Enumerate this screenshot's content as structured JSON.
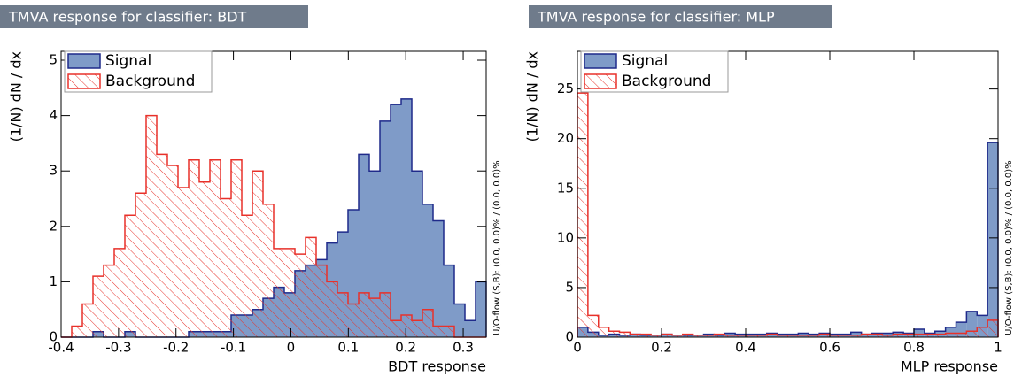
{
  "chart_data": [
    {
      "type": "histogram",
      "title": "TMVA response for classifier: BDT",
      "xlabel": "BDT response",
      "ylabel": "(1/N) dN / dx",
      "annotation": "U/O-flow (S,B): (0.0, 0.0)% / (0.0, 0.0)%",
      "legend": "top-left",
      "bins": [
        -0.4,
        -0.3815,
        -0.363,
        -0.3445,
        -0.326,
        -0.3075,
        -0.289,
        -0.2705,
        -0.252,
        -0.2335,
        -0.215,
        -0.1965,
        -0.178,
        -0.1595,
        -0.141,
        -0.1225,
        -0.104,
        -0.0855,
        -0.067,
        -0.0485,
        -0.03,
        -0.0115,
        0.007,
        0.0255,
        0.044,
        0.0625,
        0.081,
        0.0995,
        0.118,
        0.1365,
        0.155,
        0.1735,
        0.192,
        0.2105,
        0.229,
        0.2475,
        0.266,
        0.2845,
        0.303,
        0.3215,
        0.34
      ],
      "series": [
        {
          "name": "Signal",
          "color": "#7f9bc8",
          "values": [
            0,
            0,
            0,
            0.1,
            0,
            0,
            0.1,
            0,
            0,
            0,
            0,
            0,
            0.1,
            0.1,
            0.1,
            0.1,
            0.4,
            0.4,
            0.5,
            0.7,
            0.9,
            0.8,
            1.2,
            1.3,
            1.4,
            1.7,
            1.9,
            2.3,
            3.3,
            3.0,
            3.9,
            4.2,
            4.3,
            3.0,
            2.4,
            2.1,
            1.3,
            0.6,
            0.3,
            1.0
          ]
        },
        {
          "name": "Background",
          "color": "#e8312a",
          "values": [
            0,
            0.2,
            0.6,
            1.1,
            1.3,
            1.6,
            2.2,
            2.6,
            4.0,
            3.3,
            3.1,
            2.7,
            3.2,
            2.8,
            3.2,
            2.5,
            3.2,
            2.2,
            3.0,
            2.4,
            1.6,
            1.6,
            1.5,
            1.8,
            1.3,
            1.0,
            0.8,
            0.6,
            0.8,
            0.7,
            0.8,
            0.3,
            0.4,
            0.3,
            0.5,
            0.2,
            0.2,
            0,
            0,
            0
          ]
        }
      ],
      "xlim": [
        -0.4,
        0.34
      ],
      "ylim": [
        0,
        5.16
      ],
      "xticks": [
        -0.4,
        -0.3,
        -0.2,
        -0.1,
        0,
        0.1,
        0.2,
        0.3
      ],
      "yticks": [
        0,
        1,
        2,
        3,
        4,
        5
      ]
    },
    {
      "type": "histogram",
      "title": "TMVA response for classifier: MLP",
      "xlabel": "MLP response",
      "ylabel": "(1/N) dN / dx",
      "annotation": "U/O-flow (S,B): (0.0, 0.0)% / (0.0, 0.0)%",
      "legend": "top-left",
      "bins": [
        0,
        0.025,
        0.05,
        0.075,
        0.1,
        0.125,
        0.15,
        0.175,
        0.2,
        0.225,
        0.25,
        0.275,
        0.3,
        0.325,
        0.35,
        0.375,
        0.4,
        0.425,
        0.45,
        0.475,
        0.5,
        0.525,
        0.55,
        0.575,
        0.6,
        0.625,
        0.65,
        0.675,
        0.7,
        0.725,
        0.75,
        0.775,
        0.8,
        0.825,
        0.85,
        0.875,
        0.9,
        0.925,
        0.95,
        0.975,
        1
      ],
      "series": [
        {
          "name": "Signal",
          "color": "#7f9bc8",
          "values": [
            1.0,
            0.5,
            0.2,
            0.3,
            0.2,
            0.3,
            0.2,
            0.2,
            0.3,
            0.2,
            0.2,
            0.2,
            0.3,
            0.2,
            0.4,
            0.3,
            0.3,
            0.3,
            0.4,
            0.3,
            0.3,
            0.4,
            0.3,
            0.4,
            0.3,
            0.3,
            0.5,
            0.3,
            0.4,
            0.4,
            0.5,
            0.4,
            0.8,
            0.4,
            0.6,
            1.0,
            1.5,
            2.6,
            2.2,
            19.6
          ]
        },
        {
          "name": "Background",
          "color": "#e8312a",
          "values": [
            24.6,
            2.2,
            1.0,
            0.6,
            0.5,
            0.3,
            0.3,
            0.2,
            0.3,
            0.2,
            0.3,
            0.2,
            0.2,
            0.3,
            0.2,
            0.2,
            0.2,
            0.2,
            0.3,
            0.2,
            0.2,
            0.2,
            0.2,
            0.3,
            0.2,
            0.2,
            0.2,
            0.3,
            0.3,
            0.2,
            0.3,
            0.3,
            0.3,
            0.3,
            0.3,
            0.4,
            0.4,
            0.6,
            1.0,
            1.7
          ]
        }
      ],
      "xlim": [
        0,
        1
      ],
      "ylim": [
        0,
        28.8
      ],
      "xticks": [
        0,
        0.2,
        0.4,
        0.6,
        0.8,
        1
      ],
      "yticks": [
        0,
        5,
        10,
        15,
        20,
        25
      ]
    }
  ]
}
